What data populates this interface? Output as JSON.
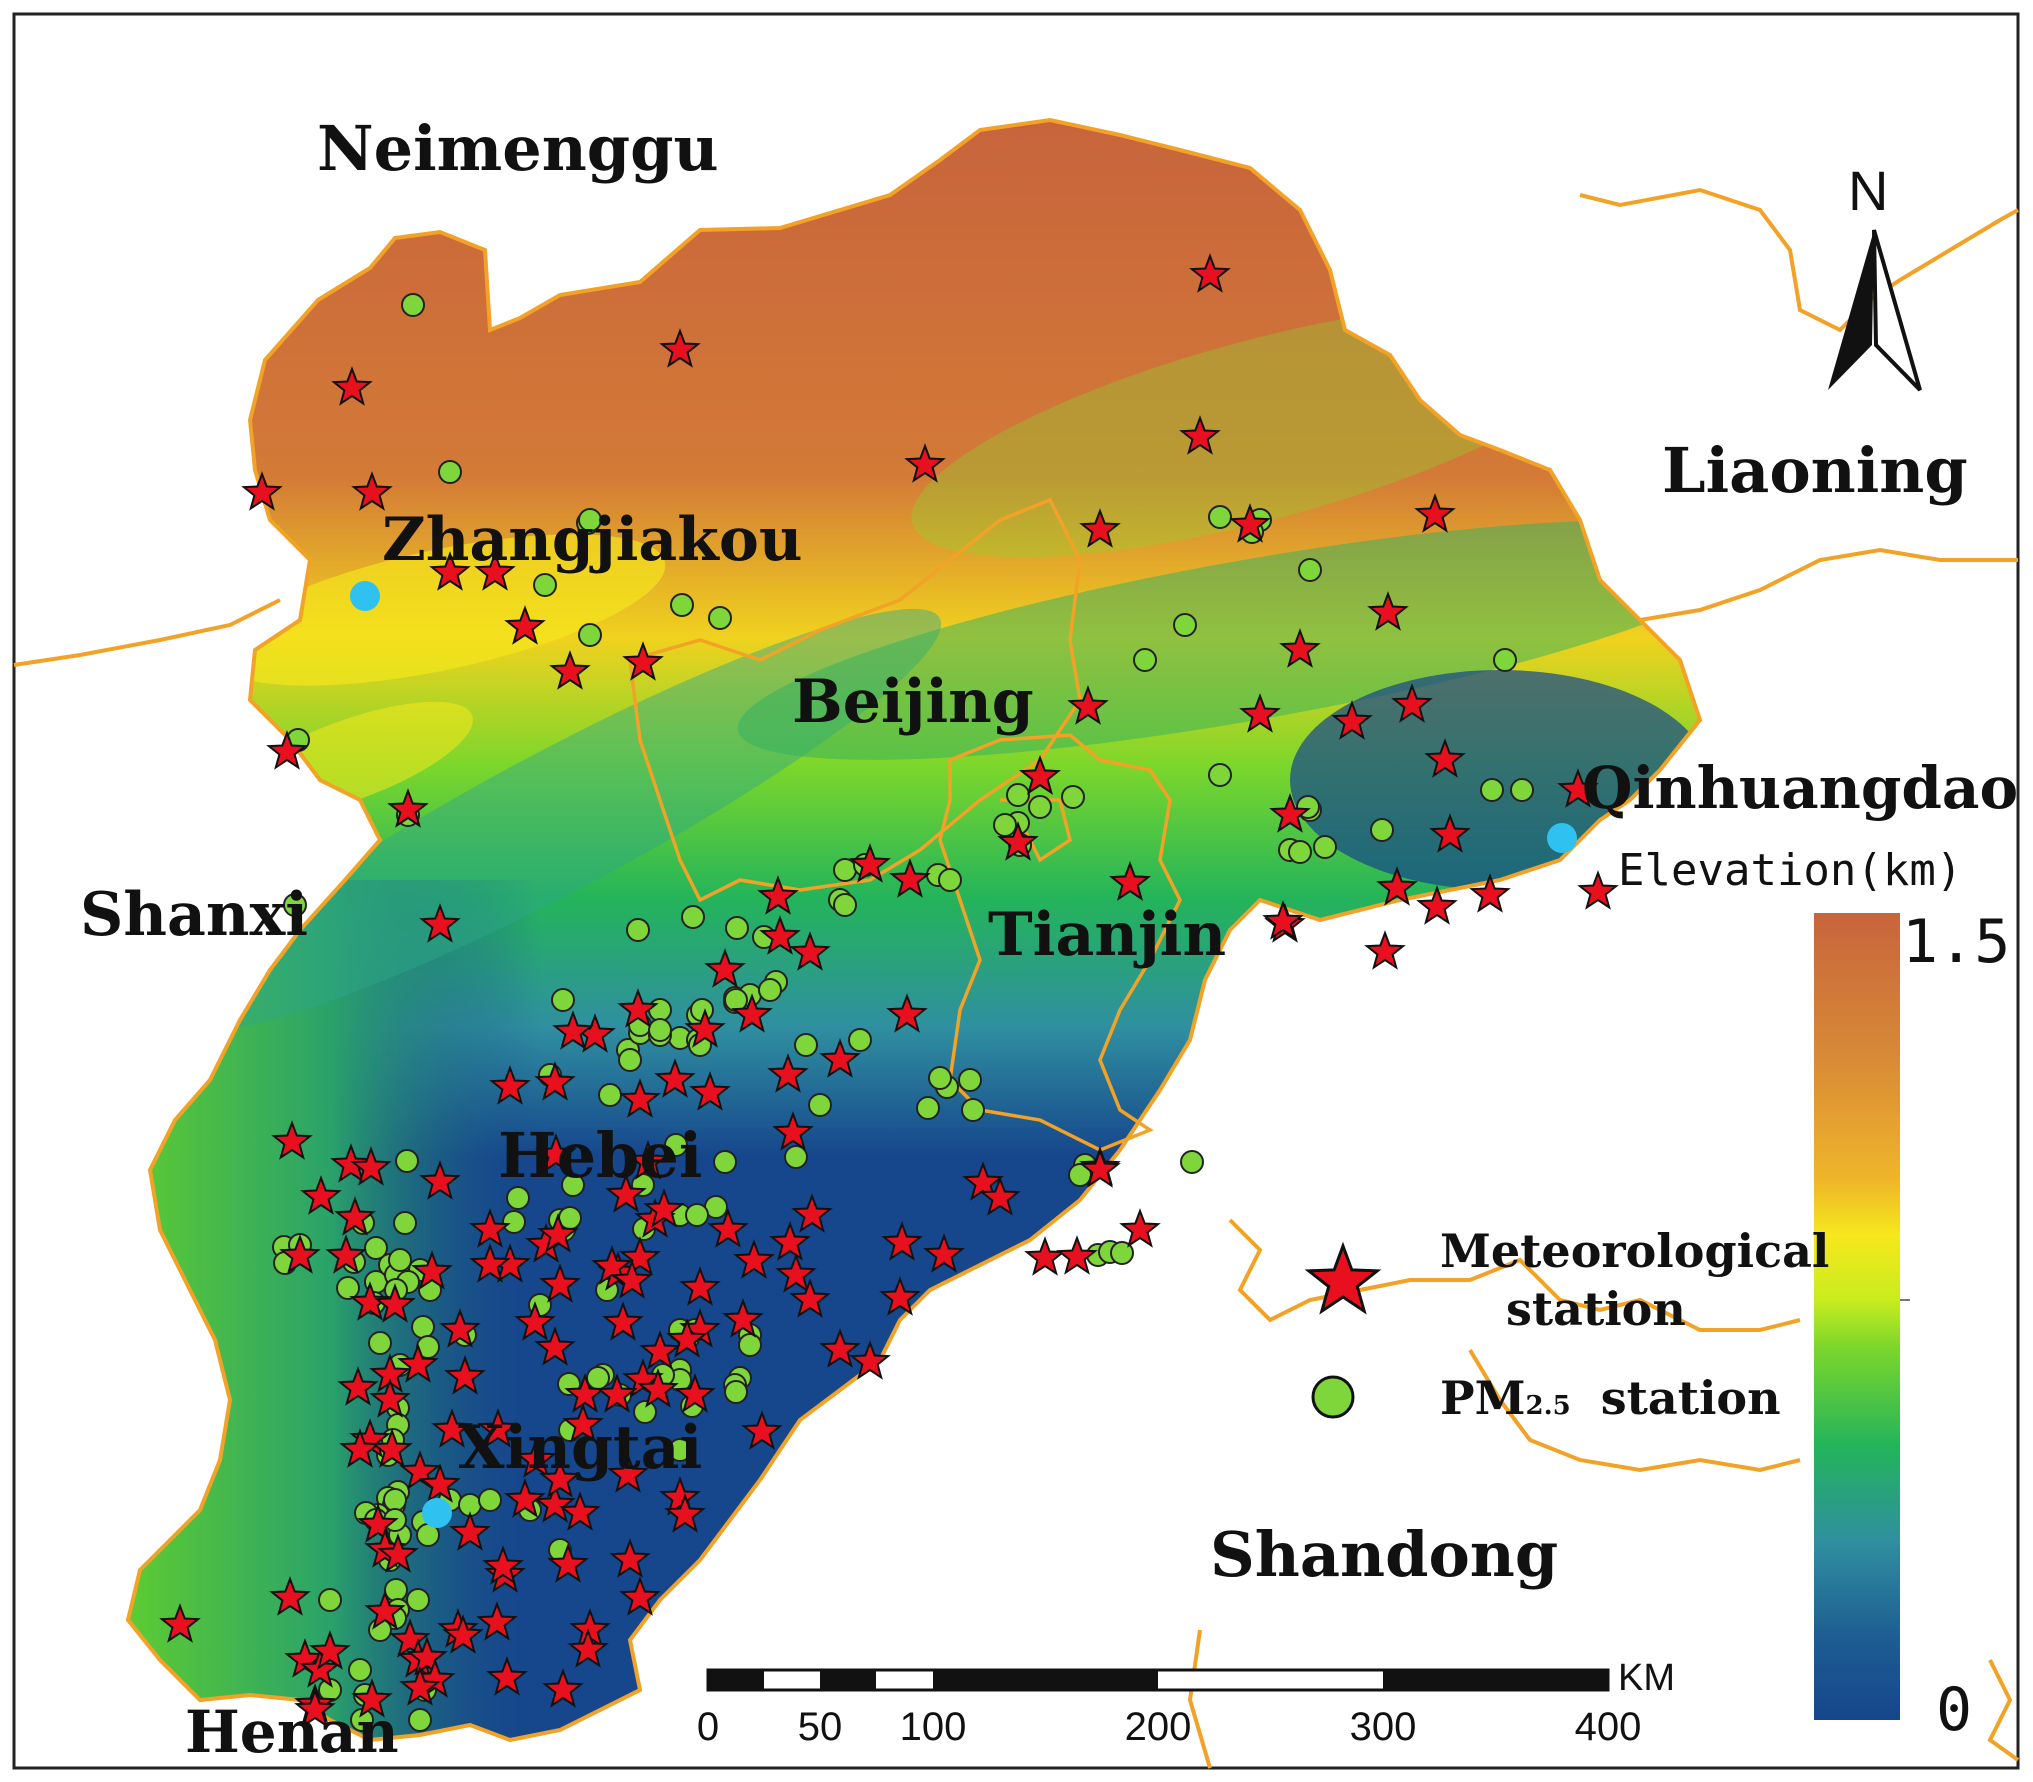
{
  "map": {
    "regions": {
      "neimenggu": "Neimenggu",
      "liaoning": "Liaoning",
      "shanxi": "Shanxi",
      "shandong": "Shandong",
      "henan": "Henan",
      "hebei": "Hebei",
      "beijing": "Beijing",
      "tianjin": "Tianjin"
    },
    "cities": {
      "zhangjiakou": "Zhangjiakou",
      "qinhuangdao": "Qinhuangdao",
      "xingtai": "Xingtai"
    },
    "north_arrow": "N",
    "colorbar": {
      "title": "Elevation(km)",
      "max_label": "1.5",
      "min_label": "0",
      "colors": [
        "#c7643c",
        "#e29a34",
        "#f6e81c",
        "#7ad62c",
        "#24b45a",
        "#2f8fa0",
        "#16468c"
      ]
    },
    "legend": {
      "met_line1": "Meteorological",
      "met_line2": "station",
      "pm_main": "PM",
      "pm_sub": "2.5",
      "pm_suffix": "station"
    },
    "scalebar": {
      "unit": "KM",
      "ticks": [
        "0",
        "50",
        "100",
        "200",
        "300",
        "400"
      ]
    },
    "colors": {
      "met_star": "#e8101e",
      "pm_circle": "#7fd63a",
      "city_dot": "#2fc1f0",
      "border": "#f2a227",
      "lowland": "#16468c"
    }
  }
}
